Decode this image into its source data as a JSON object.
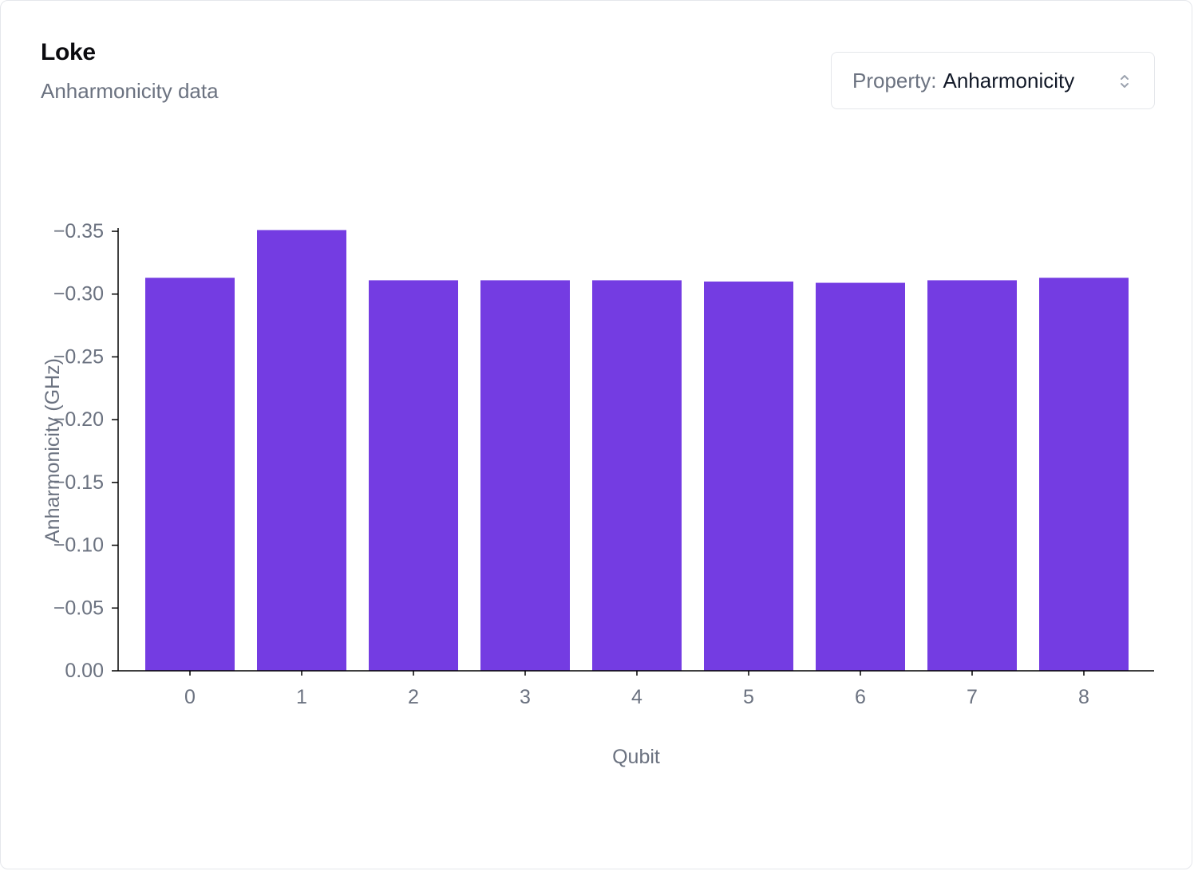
{
  "card": {
    "title": "Loke",
    "subtitle": "Anharmonicity data"
  },
  "selector": {
    "prefix": "Property:",
    "value": "Anharmonicity",
    "icon": "chevron-up-down-icon"
  },
  "colors": {
    "bar": "#743ce2",
    "axis": "#000000",
    "tick_text": "#6b7280"
  },
  "chart_data": {
    "type": "bar",
    "title": "",
    "xlabel": "Qubit",
    "ylabel": "Anharmonicity (GHz)",
    "categories": [
      "0",
      "1",
      "2",
      "3",
      "4",
      "5",
      "6",
      "7",
      "8"
    ],
    "values": [
      -0.313,
      -0.351,
      -0.311,
      -0.311,
      -0.311,
      -0.31,
      -0.309,
      -0.311,
      -0.313
    ],
    "ylim": [
      0,
      -0.35
    ],
    "yticks": [
      0,
      -0.05,
      -0.1,
      -0.15,
      -0.2,
      -0.25,
      -0.3,
      -0.35
    ],
    "ytick_labels": [
      "0.00",
      "−0.05",
      "−0.10",
      "−0.15",
      "−0.20",
      "−0.25",
      "−0.30",
      "−0.35"
    ],
    "grid": false,
    "legend": "none"
  }
}
